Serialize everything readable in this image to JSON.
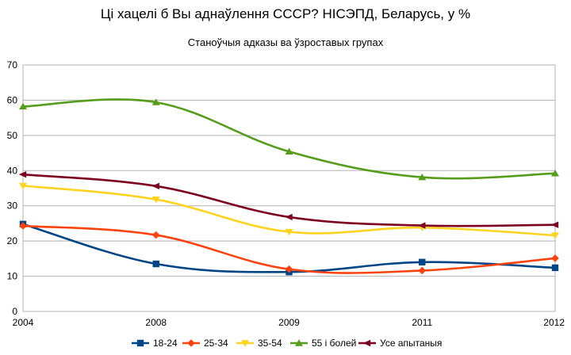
{
  "chart_data": {
    "type": "line",
    "title": "Ці хацелі б Вы аднаўлення СССР? НІСЭПД, Беларусь, у %",
    "subtitle": "Станоўчыя адказы ва ўзроставых групах",
    "xlabel": "",
    "ylabel": "",
    "categories": [
      "2004",
      "2008",
      "2009",
      "2011",
      "2012"
    ],
    "ylim": [
      0,
      70
    ],
    "yticks": [
      0,
      10,
      20,
      30,
      40,
      50,
      60,
      70
    ],
    "grid": true,
    "legend_position": "bottom",
    "series": [
      {
        "name": "18-24",
        "color": "#004586",
        "marker": "square",
        "values": [
          24.8,
          13.5,
          11.2,
          14.0,
          12.4
        ]
      },
      {
        "name": "25-34",
        "color": "#ff420e",
        "marker": "diamond",
        "values": [
          24.3,
          21.7,
          12.0,
          11.6,
          15.1
        ]
      },
      {
        "name": "35-54",
        "color": "#ffd320",
        "marker": "triangle-down",
        "values": [
          35.7,
          31.8,
          22.6,
          23.8,
          21.6
        ]
      },
      {
        "name": "55 і болей",
        "color": "#579d1c",
        "marker": "triangle-up",
        "values": [
          58.2,
          59.4,
          45.4,
          38.1,
          39.2
        ]
      },
      {
        "name": "Усе апытаныя",
        "color": "#7e0021",
        "marker": "arrow-left",
        "values": [
          38.9,
          35.6,
          26.8,
          24.4,
          24.6
        ]
      }
    ]
  }
}
